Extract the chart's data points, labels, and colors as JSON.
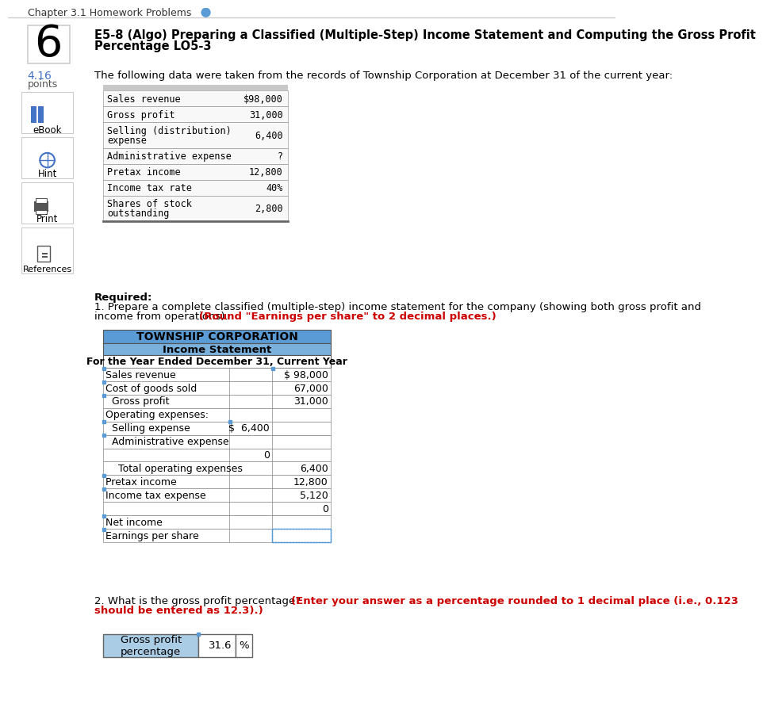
{
  "page_title": "Chapter 3.1 Homework Problems",
  "problem_number": "6",
  "problem_title_line1": "E5-8 (Algo) Preparing a Classified (Multiple-Step) Income Statement and Computing the Gross Profit",
  "problem_title_line2": "Percentage LO5-3",
  "points_val": "4.16",
  "points_label": "points",
  "intro_text": "The following data were taken from the records of Township Corporation at December 31 of the current year:",
  "given_data": [
    {
      "label": "Sales revenue",
      "value": "$98,000",
      "multiline": false
    },
    {
      "label": "Gross profit",
      "value": "31,000",
      "multiline": false
    },
    {
      "label": "Selling (distribution)\nexpense",
      "value": "6,400",
      "multiline": true
    },
    {
      "label": "Administrative expense",
      "value": "?",
      "multiline": false
    },
    {
      "label": "Pretax income",
      "value": "12,800",
      "multiline": false
    },
    {
      "label": "Income tax rate",
      "value": "40%",
      "multiline": false
    },
    {
      "label": "Shares of stock\noutstanding",
      "value": "2,800",
      "multiline": true
    }
  ],
  "required_label": "Required:",
  "req_line1": "1. Prepare a complete classified (multiple-step) income statement for the company (showing both gross profit and",
  "req_line2": "income from operations).",
  "req_bold": "(Round \"Earnings per share\" to 2 decimal places.)",
  "table_title1": "TOWNSHIP CORPORATION",
  "table_title2": "Income Statement",
  "table_title3": "For the Year Ended December 31, Current Year",
  "table_body": [
    {
      "label": "Sales revenue",
      "col1": "",
      "col2": "$ 98,000",
      "dotted2": false,
      "marker_left": true,
      "marker_mid": false,
      "marker_right": true
    },
    {
      "label": "Cost of goods sold",
      "col1": "",
      "col2": "67,000",
      "dotted2": false,
      "marker_left": true,
      "marker_mid": false,
      "marker_right": false
    },
    {
      "label": "  Gross profit",
      "col1": "",
      "col2": "31,000",
      "dotted2": false,
      "marker_left": true,
      "marker_mid": false,
      "marker_right": false
    },
    {
      "label": "Operating expenses:",
      "col1": "",
      "col2": "",
      "dotted2": false,
      "marker_left": false,
      "marker_mid": false,
      "marker_right": false
    },
    {
      "label": "  Selling expense",
      "col1": "$  6,400",
      "col2": "",
      "dotted2": false,
      "marker_left": true,
      "marker_mid": true,
      "marker_right": false
    },
    {
      "label": "  Administrative expense",
      "col1": "",
      "col2": "",
      "dotted2": false,
      "marker_left": true,
      "marker_mid": false,
      "marker_right": false
    },
    {
      "label": "",
      "col1": "0",
      "col2": "",
      "dotted2": false,
      "marker_left": false,
      "marker_mid": false,
      "marker_right": false
    },
    {
      "label": "    Total operating expenses",
      "col1": "",
      "col2": "6,400",
      "dotted2": false,
      "marker_left": false,
      "marker_mid": false,
      "marker_right": false
    },
    {
      "label": "Pretax income",
      "col1": "",
      "col2": "12,800",
      "dotted2": false,
      "marker_left": true,
      "marker_mid": false,
      "marker_right": false
    },
    {
      "label": "Income tax expense",
      "col1": "",
      "col2": "5,120",
      "dotted2": false,
      "marker_left": true,
      "marker_mid": false,
      "marker_right": false
    },
    {
      "label": "",
      "col1": "",
      "col2": "0",
      "dotted2": false,
      "marker_left": false,
      "marker_mid": false,
      "marker_right": false
    },
    {
      "label": "Net income",
      "col1": "",
      "col2": "",
      "dotted2": false,
      "marker_left": true,
      "marker_mid": false,
      "marker_right": false
    },
    {
      "label": "Earnings per share",
      "col1": "",
      "col2": "",
      "dotted2": true,
      "marker_left": true,
      "marker_mid": false,
      "marker_right": false
    }
  ],
  "s2_normal": "2. What is the gross profit percentage?",
  "s2_bold_line1": "(Enter your answer as a percentage rounded to 1 decimal place (i.e., 0.123",
  "s2_bold_line2": "should be entered as 12.3).)",
  "gp_label": "Gross profit\npercentage",
  "gp_value": "31.6",
  "gp_unit": "%",
  "color_header1": "#5b9bd5",
  "color_header2": "#7ab0dc",
  "color_blue_light": "#aacce4",
  "color_red": "#cc0000",
  "color_blue_link": "#4472c4",
  "color_gray_border": "#aaaaaa",
  "color_dark_border": "#555555"
}
